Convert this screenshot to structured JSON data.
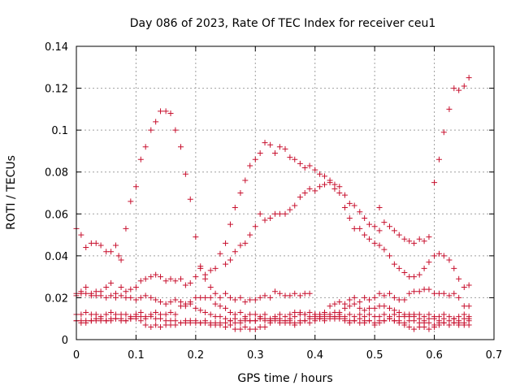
{
  "chart_data": {
    "type": "scatter",
    "title": "Day 086 of 2023, Rate Of TEC Index for receiver ceu1",
    "xlabel": "GPS time / hours",
    "ylabel": "ROTI / TECUs",
    "xlim": [
      0,
      0.7
    ],
    "ylim": [
      0,
      0.14
    ],
    "x_ticks": [
      "0",
      "0.1",
      "0.2",
      "0.3",
      "0.4",
      "0.5",
      "0.6",
      "0.7"
    ],
    "y_ticks": [
      "0",
      "0.02",
      "0.04",
      "0.06",
      "0.08",
      "0.1",
      "0.12",
      "0.14"
    ],
    "grid": true,
    "marker": "+",
    "color": "#c8102e",
    "series": [
      {
        "x": [
          0.0,
          0.008,
          0.016,
          0.025,
          0.033,
          0.041,
          0.05,
          0.058,
          0.066,
          0.071,
          0.075,
          0.083,
          0.091,
          0.1,
          0.108,
          0.116,
          0.125,
          0.133,
          0.141,
          0.15,
          0.158,
          0.166,
          0.175,
          0.183,
          0.191
        ],
        "y": [
          0.053,
          0.05,
          0.044,
          0.046,
          0.046,
          0.045,
          0.042,
          0.042,
          0.045,
          0.04,
          0.038,
          0.053,
          0.066,
          0.073,
          0.086,
          0.092,
          0.1,
          0.104,
          0.109,
          0.109,
          0.108,
          0.1,
          0.092,
          0.079,
          0.067
        ]
      },
      {
        "x": [
          0.2,
          0.208,
          0.216,
          0.225,
          0.233,
          0.241,
          0.25,
          0.258,
          0.266,
          0.275,
          0.283,
          0.291,
          0.3,
          0.308,
          0.316,
          0.325,
          0.333,
          0.341,
          0.35,
          0.358,
          0.366,
          0.375,
          0.383,
          0.391,
          0.4,
          0.408,
          0.416,
          0.425,
          0.433,
          0.441,
          0.45,
          0.458,
          0.466,
          0.475,
          0.483,
          0.491,
          0.5,
          0.508
        ],
        "y": [
          0.049,
          0.035,
          0.031,
          0.033,
          0.034,
          0.041,
          0.046,
          0.055,
          0.063,
          0.07,
          0.076,
          0.083,
          0.086,
          0.089,
          0.094,
          0.093,
          0.089,
          0.092,
          0.091,
          0.087,
          0.086,
          0.084,
          0.082,
          0.083,
          0.081,
          0.079,
          0.078,
          0.076,
          0.074,
          0.073,
          0.069,
          0.065,
          0.064,
          0.061,
          0.058,
          0.055,
          0.054,
          0.052
        ]
      },
      {
        "x": [
          0.25,
          0.258,
          0.266,
          0.275,
          0.283,
          0.291,
          0.3,
          0.308,
          0.316,
          0.325,
          0.333,
          0.341,
          0.35,
          0.358,
          0.366,
          0.375,
          0.383,
          0.391,
          0.4,
          0.408,
          0.416,
          0.425,
          0.433,
          0.441,
          0.45,
          0.458,
          0.466,
          0.475,
          0.483,
          0.491,
          0.5,
          0.508,
          0.516,
          0.525,
          0.533,
          0.541,
          0.55,
          0.558,
          0.566,
          0.575,
          0.583,
          0.591,
          0.6,
          0.608,
          0.616,
          0.625,
          0.633,
          0.641,
          0.65,
          0.658
        ],
        "y": [
          0.036,
          0.038,
          0.042,
          0.045,
          0.046,
          0.05,
          0.054,
          0.06,
          0.057,
          0.058,
          0.06,
          0.06,
          0.06,
          0.062,
          0.064,
          0.068,
          0.07,
          0.072,
          0.071,
          0.073,
          0.074,
          0.075,
          0.072,
          0.07,
          0.063,
          0.058,
          0.053,
          0.053,
          0.05,
          0.048,
          0.046,
          0.045,
          0.043,
          0.04,
          0.036,
          0.034,
          0.032,
          0.03,
          0.03,
          0.031,
          0.034,
          0.037,
          0.04,
          0.041,
          0.04,
          0.038,
          0.034,
          0.029,
          0.025,
          0.026
        ]
      },
      {
        "x": [
          0.508,
          0.516,
          0.525,
          0.533,
          0.541,
          0.55,
          0.558,
          0.566,
          0.575,
          0.583,
          0.591,
          0.6,
          0.608,
          0.616,
          0.625,
          0.633,
          0.641,
          0.65,
          0.658
        ],
        "y": [
          0.063,
          0.056,
          0.054,
          0.052,
          0.05,
          0.048,
          0.047,
          0.046,
          0.048,
          0.047,
          0.049,
          0.075,
          0.086,
          0.099,
          0.11,
          0.12,
          0.119,
          0.121,
          0.125
        ]
      },
      {
        "x": [
          0.0,
          0.008,
          0.016,
          0.025,
          0.033,
          0.041,
          0.05,
          0.058,
          0.066,
          0.075,
          0.083,
          0.091,
          0.1,
          0.108,
          0.116,
          0.125,
          0.133,
          0.141,
          0.15,
          0.158,
          0.166,
          0.175,
          0.183,
          0.191,
          0.2,
          0.208,
          0.216,
          0.225,
          0.233,
          0.241,
          0.25,
          0.258,
          0.266,
          0.275,
          0.283,
          0.291,
          0.3,
          0.308,
          0.316,
          0.325,
          0.333,
          0.341,
          0.35,
          0.358,
          0.366,
          0.375,
          0.383,
          0.391,
          0.4,
          0.408,
          0.416,
          0.425,
          0.433,
          0.441,
          0.45,
          0.458,
          0.466,
          0.475,
          0.483,
          0.491,
          0.5,
          0.508,
          0.516,
          0.525,
          0.533,
          0.541,
          0.55,
          0.558,
          0.566,
          0.575,
          0.583,
          0.591,
          0.6,
          0.608,
          0.616,
          0.625,
          0.633,
          0.641,
          0.65,
          0.658
        ],
        "y": [
          0.021,
          0.022,
          0.025,
          0.022,
          0.021,
          0.023,
          0.025,
          0.027,
          0.022,
          0.025,
          0.023,
          0.024,
          0.025,
          0.028,
          0.029,
          0.03,
          0.031,
          0.03,
          0.028,
          0.029,
          0.028,
          0.029,
          0.026,
          0.027,
          0.03,
          0.034,
          0.029,
          0.025,
          0.022,
          0.02,
          0.022,
          0.02,
          0.019,
          0.02,
          0.018,
          0.019,
          0.019,
          0.02,
          0.021,
          0.02,
          0.023,
          0.022,
          0.021,
          0.021,
          0.022,
          0.021,
          0.022,
          0.022,
          0.012,
          0.012,
          0.013,
          0.016,
          0.017,
          0.018,
          0.017,
          0.019,
          0.02,
          0.018,
          0.02,
          0.019,
          0.02,
          0.022,
          0.021,
          0.022,
          0.02,
          0.019,
          0.019,
          0.022,
          0.023,
          0.023,
          0.024,
          0.024,
          0.022,
          0.022,
          0.022,
          0.021,
          0.022,
          0.02,
          0.016,
          0.016
        ]
      },
      {
        "x": [
          0.0,
          0.008,
          0.016,
          0.025,
          0.033,
          0.041,
          0.05,
          0.058,
          0.066,
          0.075,
          0.083,
          0.091,
          0.1,
          0.108,
          0.116,
          0.125,
          0.133,
          0.141,
          0.15,
          0.158,
          0.166,
          0.175,
          0.183,
          0.191,
          0.2,
          0.208,
          0.216,
          0.225,
          0.233,
          0.241,
          0.25,
          0.258,
          0.266,
          0.275,
          0.283,
          0.291,
          0.3,
          0.308,
          0.316,
          0.325,
          0.333,
          0.341,
          0.35,
          0.358,
          0.366,
          0.375,
          0.383,
          0.391,
          0.4,
          0.408,
          0.416,
          0.425,
          0.433,
          0.441,
          0.45,
          0.458,
          0.466,
          0.475,
          0.483,
          0.491,
          0.5,
          0.508,
          0.516,
          0.525,
          0.533,
          0.541,
          0.55,
          0.558,
          0.566,
          0.575,
          0.583,
          0.591,
          0.6,
          0.608,
          0.616,
          0.625,
          0.633,
          0.641,
          0.65,
          0.658
        ],
        "y": [
          0.012,
          0.012,
          0.013,
          0.012,
          0.012,
          0.011,
          0.012,
          0.013,
          0.012,
          0.012,
          0.012,
          0.011,
          0.012,
          0.013,
          0.011,
          0.012,
          0.013,
          0.012,
          0.012,
          0.013,
          0.012,
          0.016,
          0.017,
          0.018,
          0.02,
          0.02,
          0.02,
          0.02,
          0.017,
          0.016,
          0.015,
          0.013,
          0.012,
          0.013,
          0.011,
          0.012,
          0.012,
          0.011,
          0.012,
          0.01,
          0.011,
          0.012,
          0.011,
          0.012,
          0.013,
          0.012,
          0.012,
          0.011,
          0.012,
          0.012,
          0.011,
          0.012,
          0.013,
          0.012,
          0.011,
          0.012,
          0.011,
          0.012,
          0.011,
          0.012,
          0.011,
          0.011,
          0.012,
          0.011,
          0.012,
          0.011,
          0.012,
          0.011,
          0.012,
          0.012,
          0.011,
          0.012,
          0.011,
          0.011,
          0.012,
          0.011,
          0.01,
          0.011,
          0.012,
          0.011
        ]
      },
      {
        "x": [
          0.0,
          0.008,
          0.016,
          0.025,
          0.033,
          0.041,
          0.05,
          0.058,
          0.066,
          0.075,
          0.083,
          0.091,
          0.1,
          0.108,
          0.116,
          0.125,
          0.133,
          0.141,
          0.15,
          0.158,
          0.166,
          0.175,
          0.183,
          0.191,
          0.2,
          0.208,
          0.216,
          0.225,
          0.233,
          0.241,
          0.25,
          0.258,
          0.266,
          0.275,
          0.283,
          0.291,
          0.3,
          0.308,
          0.316,
          0.325,
          0.333,
          0.341,
          0.35,
          0.358,
          0.366,
          0.375,
          0.383,
          0.391,
          0.4,
          0.408,
          0.416,
          0.425,
          0.433,
          0.441,
          0.45,
          0.458,
          0.466,
          0.475,
          0.483,
          0.491,
          0.5,
          0.508,
          0.516,
          0.525,
          0.533,
          0.541,
          0.55,
          0.558,
          0.566,
          0.575,
          0.583,
          0.591,
          0.6,
          0.608,
          0.616,
          0.625,
          0.633,
          0.641,
          0.65,
          0.658
        ],
        "y": [
          0.009,
          0.008,
          0.009,
          0.009,
          0.01,
          0.009,
          0.009,
          0.01,
          0.01,
          0.01,
          0.009,
          0.01,
          0.01,
          0.009,
          0.007,
          0.006,
          0.007,
          0.006,
          0.007,
          0.007,
          0.007,
          0.008,
          0.008,
          0.009,
          0.008,
          0.008,
          0.009,
          0.008,
          0.007,
          0.007,
          0.006,
          0.007,
          0.005,
          0.005,
          0.006,
          0.005,
          0.005,
          0.006,
          0.006,
          0.008,
          0.009,
          0.008,
          0.009,
          0.008,
          0.007,
          0.008,
          0.009,
          0.008,
          0.009,
          0.01,
          0.01,
          0.011,
          0.01,
          0.011,
          0.009,
          0.008,
          0.009,
          0.008,
          0.008,
          0.009,
          0.007,
          0.008,
          0.009,
          0.01,
          0.009,
          0.008,
          0.007,
          0.006,
          0.005,
          0.006,
          0.006,
          0.005,
          0.006,
          0.007,
          0.008,
          0.007,
          0.008,
          0.007,
          0.008,
          0.009
        ]
      },
      {
        "x": [
          0.0,
          0.008,
          0.016,
          0.025,
          0.033,
          0.041,
          0.05,
          0.058,
          0.066,
          0.075,
          0.083,
          0.091,
          0.1,
          0.108,
          0.116,
          0.125,
          0.133,
          0.141,
          0.15,
          0.158,
          0.166,
          0.175,
          0.183,
          0.191,
          0.2,
          0.208,
          0.216,
          0.225,
          0.233,
          0.241,
          0.25,
          0.258,
          0.266,
          0.275,
          0.283,
          0.291,
          0.3,
          0.308,
          0.316,
          0.325,
          0.333,
          0.341,
          0.35,
          0.358,
          0.366,
          0.375,
          0.383,
          0.391,
          0.4,
          0.408,
          0.416,
          0.425,
          0.433,
          0.441,
          0.45,
          0.458,
          0.466,
          0.475,
          0.483,
          0.491,
          0.5,
          0.508,
          0.516,
          0.525,
          0.533,
          0.541,
          0.55,
          0.558,
          0.566,
          0.575,
          0.583,
          0.591,
          0.6,
          0.608,
          0.616,
          0.625,
          0.633,
          0.641,
          0.65,
          0.658
        ],
        "y": [
          0.022,
          0.023,
          0.022,
          0.021,
          0.023,
          0.021,
          0.02,
          0.021,
          0.02,
          0.021,
          0.02,
          0.02,
          0.019,
          0.02,
          0.021,
          0.02,
          0.019,
          0.018,
          0.017,
          0.018,
          0.019,
          0.018,
          0.016,
          0.017,
          0.015,
          0.014,
          0.013,
          0.012,
          0.011,
          0.011,
          0.01,
          0.009,
          0.01,
          0.009,
          0.01,
          0.009,
          0.009,
          0.01,
          0.01,
          0.009,
          0.01,
          0.01,
          0.009,
          0.01,
          0.011,
          0.013,
          0.012,
          0.013,
          0.011,
          0.01,
          0.009,
          0.01,
          0.011,
          0.013,
          0.015,
          0.016,
          0.017,
          0.015,
          0.014,
          0.015,
          0.015,
          0.016,
          0.016,
          0.015,
          0.014,
          0.013,
          0.011,
          0.012,
          0.011,
          0.01,
          0.009,
          0.01,
          0.01,
          0.009,
          0.01,
          0.009,
          0.01,
          0.009,
          0.01,
          0.01
        ]
      },
      {
        "x": [
          0.0,
          0.008,
          0.016,
          0.025,
          0.033,
          0.041,
          0.05,
          0.058,
          0.066,
          0.075,
          0.083,
          0.091,
          0.1,
          0.108,
          0.116,
          0.125,
          0.133,
          0.141,
          0.15,
          0.158,
          0.166,
          0.175,
          0.183,
          0.191,
          0.2,
          0.208,
          0.216,
          0.225,
          0.233,
          0.241,
          0.25,
          0.258,
          0.266,
          0.275,
          0.283,
          0.291,
          0.3,
          0.308,
          0.316,
          0.325,
          0.333,
          0.341,
          0.35,
          0.358,
          0.366,
          0.375,
          0.383,
          0.391,
          0.4,
          0.408,
          0.416,
          0.425,
          0.433,
          0.441,
          0.45,
          0.458,
          0.466,
          0.475,
          0.483,
          0.491,
          0.5,
          0.508,
          0.516,
          0.525,
          0.533,
          0.541,
          0.55,
          0.558,
          0.566,
          0.575,
          0.583,
          0.591,
          0.6,
          0.608,
          0.616,
          0.625,
          0.633,
          0.641,
          0.65,
          0.658
        ],
        "y": [
          0.009,
          0.009,
          0.008,
          0.009,
          0.009,
          0.01,
          0.009,
          0.009,
          0.01,
          0.009,
          0.009,
          0.01,
          0.011,
          0.011,
          0.01,
          0.011,
          0.01,
          0.01,
          0.009,
          0.009,
          0.009,
          0.008,
          0.009,
          0.008,
          0.009,
          0.008,
          0.008,
          0.007,
          0.008,
          0.008,
          0.008,
          0.009,
          0.008,
          0.008,
          0.009,
          0.009,
          0.009,
          0.01,
          0.009,
          0.009,
          0.01,
          0.009,
          0.008,
          0.009,
          0.008,
          0.009,
          0.009,
          0.01,
          0.01,
          0.011,
          0.012,
          0.012,
          0.011,
          0.01,
          0.01,
          0.009,
          0.009,
          0.01,
          0.009,
          0.009,
          0.008,
          0.009,
          0.009,
          0.01,
          0.009,
          0.009,
          0.008,
          0.009,
          0.009,
          0.008,
          0.008,
          0.008,
          0.007,
          0.008,
          0.008,
          0.007,
          0.008,
          0.008,
          0.007,
          0.007
        ]
      }
    ]
  }
}
